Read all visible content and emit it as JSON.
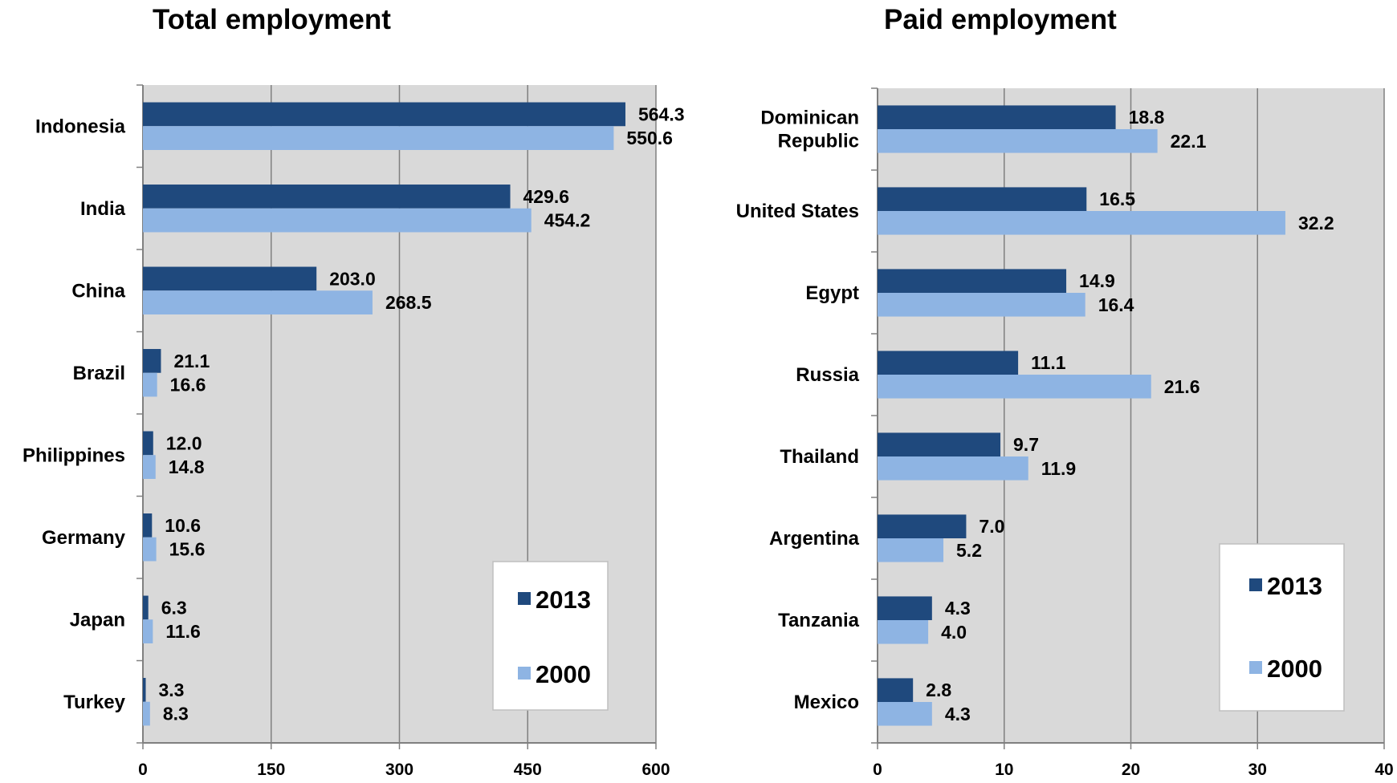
{
  "colors": {
    "series_2013": "#1F497D",
    "series_2000": "#8EB4E3",
    "plot_bg": "#D9D9D9",
    "grid": "#808080"
  },
  "chart_data": [
    {
      "type": "bar",
      "orientation": "horizontal",
      "title": "Total employment",
      "categories": [
        "Indonesia",
        "India",
        "China",
        "Brazil",
        "Philippines",
        "Germany",
        "Japan",
        "Turkey"
      ],
      "series": [
        {
          "name": "2013",
          "values": [
            564.3,
            429.6,
            203.0,
            21.1,
            12.0,
            10.6,
            6.3,
            3.3
          ]
        },
        {
          "name": "2000",
          "values": [
            550.6,
            454.2,
            268.5,
            16.6,
            14.8,
            15.6,
            11.6,
            8.3
          ]
        }
      ],
      "xlim": [
        0,
        600
      ],
      "xticks": [
        0,
        150,
        300,
        450,
        600
      ],
      "grid": true,
      "legend_position": "bottom-right"
    },
    {
      "type": "bar",
      "orientation": "horizontal",
      "title": "Paid employment",
      "categories": [
        "Dominican Republic",
        "United States",
        "Egypt",
        "Russia",
        "Thailand",
        "Argentina",
        "Tanzania",
        "Mexico"
      ],
      "series": [
        {
          "name": "2013",
          "values": [
            18.8,
            16.5,
            14.9,
            11.1,
            9.7,
            7.0,
            4.3,
            2.8
          ]
        },
        {
          "name": "2000",
          "values": [
            22.1,
            32.2,
            16.4,
            21.6,
            11.9,
            5.2,
            4.0,
            4.3
          ]
        }
      ],
      "xlim": [
        0,
        40
      ],
      "xticks": [
        0,
        10,
        20,
        30,
        40
      ],
      "grid": true,
      "legend_position": "bottom-right"
    }
  ]
}
